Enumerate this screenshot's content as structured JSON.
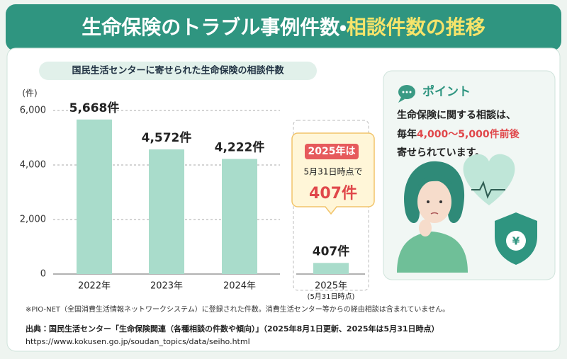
{
  "header": {
    "title_main": "生命保険のトラブル事例件数・",
    "title_highlight": "相談件数の推移"
  },
  "chart_data": {
    "type": "bar",
    "subtitle": "国民生活センターに寄せられた生命保険の相談件数",
    "y_unit": "(件)",
    "categories": [
      "2022年",
      "2023年",
      "2024年",
      "2025年"
    ],
    "x_note": "(5月31日時点)",
    "values": [
      5668,
      4572,
      4222,
      407
    ],
    "value_labels": [
      "5,668件",
      "4,572件",
      "4,222件",
      "407件"
    ],
    "color": "#a9dccb",
    "ylim": [
      0,
      6000
    ],
    "yticks": [
      0,
      {
        "value": 2000,
        "label": "2,000"
      },
      {
        "value": 4000,
        "label": "4,000"
      },
      {
        "value": 6000,
        "label": "6,000"
      }
    ],
    "grid": true
  },
  "callout": {
    "line1": "2025年は",
    "line2": "5月31日時点で",
    "line3": "407件"
  },
  "point": {
    "heading": "ポイント",
    "line1": "生命保険に関する相談は、",
    "line2_prefix": "毎年",
    "line2_highlight": "4,000〜5,000件前後",
    "line3": "寄せられています。"
  },
  "footnote": "※PIO-NET（全国消費生活情報ネットワークシステム）に登録された件数。消費生活センター等からの経由相談は含まれていません。",
  "source": "出典：国民生活センター「生命保険関連（各種相談の件数や傾向）」（2025年8月1日更新、2025年は5月31日時点）",
  "url": "https://www.kokusen.go.jp/soudan_topics/data/seiho.html"
}
